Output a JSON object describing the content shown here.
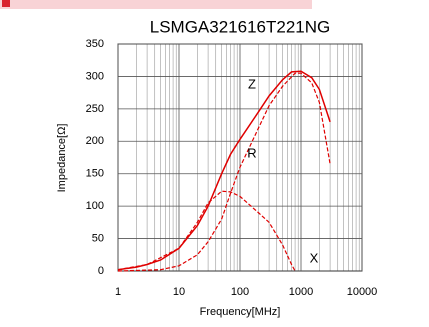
{
  "chart_data": {
    "type": "line",
    "title": "LSMGA321616T221NG",
    "x_label": "Frequency[MHz]",
    "y_label": "Impedance[Ω]",
    "log_x": true,
    "grid": true,
    "minor_grid": true,
    "xlim": [
      1,
      10000
    ],
    "xticks": [
      1,
      10,
      100,
      1000,
      10000
    ],
    "ylim": [
      0,
      350
    ],
    "yticks": [
      0,
      50,
      100,
      150,
      200,
      250,
      300,
      350
    ],
    "series": [
      {
        "name": "Z",
        "color": "#e00000",
        "dashed": false,
        "x": [
          1,
          2,
          3,
          5,
          10,
          20,
          30,
          50,
          70,
          100,
          200,
          300,
          500,
          700,
          1000,
          1500,
          2000,
          3000
        ],
        "values": [
          2,
          6,
          10,
          17,
          35,
          70,
          100,
          150,
          180,
          203,
          245,
          270,
          295,
          307,
          308,
          298,
          280,
          230
        ]
      },
      {
        "name": "R",
        "color": "#e00000",
        "dashed": true,
        "x": [
          1,
          5,
          10,
          20,
          30,
          50,
          70,
          100,
          200,
          300,
          500,
          800,
          1000,
          1500,
          2000,
          3000
        ],
        "values": [
          0,
          2,
          8,
          25,
          45,
          80,
          120,
          160,
          220,
          255,
          285,
          305,
          305,
          290,
          260,
          165
        ]
      },
      {
        "name": "X",
        "color": "#e00000",
        "dashed": true,
        "x": [
          1,
          3,
          10,
          20,
          30,
          50,
          70,
          100,
          200,
          300,
          500,
          700,
          800
        ],
        "values": [
          2,
          10,
          35,
          75,
          105,
          123,
          122,
          115,
          90,
          75,
          40,
          10,
          0
        ]
      }
    ]
  }
}
